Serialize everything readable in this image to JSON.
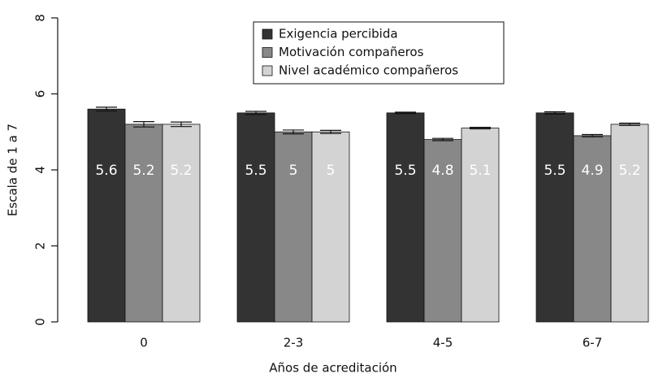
{
  "chart_data": {
    "type": "bar",
    "xlabel": "Años de acreditación",
    "ylabel": "Escala de 1 a 7",
    "categories": [
      "0",
      "2-3",
      "4-5",
      "6-7"
    ],
    "series": [
      {
        "name": "Exigencia percibida",
        "color": "#333333",
        "values": [
          5.6,
          5.5,
          5.5,
          5.5
        ],
        "errors": [
          0.05,
          0.04,
          0.02,
          0.03
        ]
      },
      {
        "name": "Motivación compañeros",
        "color": "#888888",
        "values": [
          5.2,
          5,
          4.8,
          4.9
        ],
        "errors": [
          0.07,
          0.05,
          0.03,
          0.03
        ]
      },
      {
        "name": "Nivel académico compañeros",
        "color": "#d3d3d3",
        "values": [
          5.2,
          5,
          5.1,
          5.2
        ],
        "errors": [
          0.06,
          0.04,
          0.02,
          0.03
        ]
      }
    ],
    "ylim": [
      0,
      8
    ],
    "yticks": [
      0,
      2,
      4,
      6,
      8
    ],
    "legend": "top-center",
    "value_label_color": "#ffffff"
  }
}
